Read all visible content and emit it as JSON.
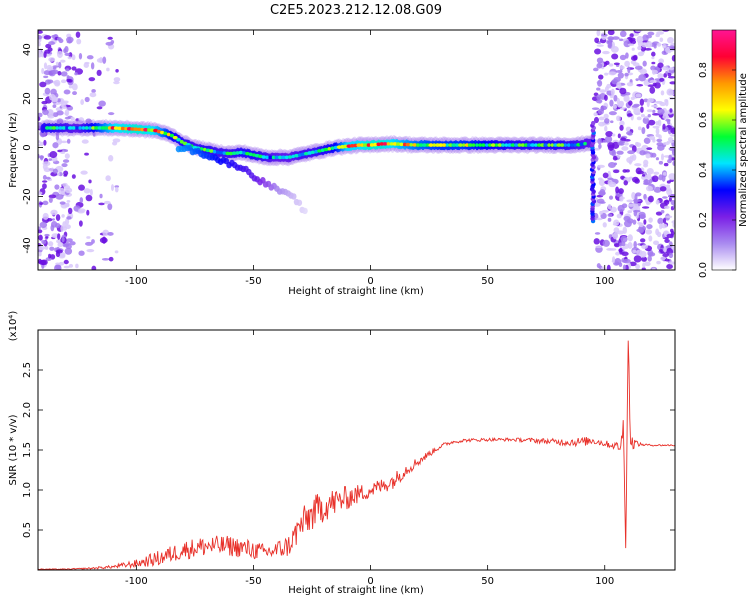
{
  "title": "C2E5.2023.212.12.08.G09",
  "chart_data": [
    {
      "type": "heatmap",
      "xlabel": "Height of straight line (km)",
      "ylabel": "Frequency (Hz)",
      "xlim": [
        -142,
        130
      ],
      "ylim": [
        -50,
        48
      ],
      "xticks": [
        -100,
        -50,
        0,
        50,
        100
      ],
      "yticks": [
        -40,
        -20,
        0,
        20,
        40
      ],
      "colorbar": {
        "label": "Normalized spectral amplitude",
        "range": [
          0,
          0.96
        ],
        "ticks": [
          0.0,
          0.2,
          0.4,
          0.6,
          0.8
        ],
        "colormap": [
          "#ffffff",
          "#a98af0",
          "#7a1fe6",
          "#0000ff",
          "#00e5ff",
          "#00ff33",
          "#ffff00",
          "#ff9900",
          "#ff0033",
          "#ff1493"
        ]
      },
      "ridge": [
        {
          "x": -137,
          "y": 8,
          "a": 0.55
        },
        {
          "x": -125,
          "y": 8,
          "a": 0.45
        },
        {
          "x": -110,
          "y": 8,
          "a": 0.8
        },
        {
          "x": -100,
          "y": 7.5,
          "a": 0.85
        },
        {
          "x": -92,
          "y": 7,
          "a": 0.8
        },
        {
          "x": -85,
          "y": 5,
          "a": 0.6
        },
        {
          "x": -80,
          "y": 2,
          "a": 0.55
        },
        {
          "x": -75,
          "y": 0,
          "a": 0.5
        },
        {
          "x": -70,
          "y": -1,
          "a": 0.55
        },
        {
          "x": -65,
          "y": -2,
          "a": 0.5
        },
        {
          "x": -60,
          "y": -2.5,
          "a": 0.5
        },
        {
          "x": -55,
          "y": -2,
          "a": 0.55
        },
        {
          "x": -50,
          "y": -3,
          "a": 0.55
        },
        {
          "x": -45,
          "y": -4,
          "a": 0.5
        },
        {
          "x": -40,
          "y": -4,
          "a": 0.45
        },
        {
          "x": -35,
          "y": -4,
          "a": 0.45
        },
        {
          "x": -30,
          "y": -3,
          "a": 0.5
        },
        {
          "x": -25,
          "y": -2,
          "a": 0.5
        },
        {
          "x": -20,
          "y": -1,
          "a": 0.55
        },
        {
          "x": -15,
          "y": 0,
          "a": 0.6
        },
        {
          "x": -10,
          "y": 0.5,
          "a": 0.8
        },
        {
          "x": -5,
          "y": 1,
          "a": 0.8
        },
        {
          "x": 0,
          "y": 1,
          "a": 0.85
        },
        {
          "x": 5,
          "y": 1.5,
          "a": 0.85
        },
        {
          "x": 10,
          "y": 1.5,
          "a": 0.8
        },
        {
          "x": 20,
          "y": 1,
          "a": 0.7
        },
        {
          "x": 30,
          "y": 1,
          "a": 0.65
        },
        {
          "x": 40,
          "y": 1,
          "a": 0.65
        },
        {
          "x": 50,
          "y": 1,
          "a": 0.6
        },
        {
          "x": 60,
          "y": 1,
          "a": 0.55
        },
        {
          "x": 70,
          "y": 1,
          "a": 0.55
        },
        {
          "x": 80,
          "y": 1,
          "a": 0.55
        },
        {
          "x": 88,
          "y": 1,
          "a": 0.5
        },
        {
          "x": 94,
          "y": 2,
          "a": 0.45
        }
      ],
      "branch": [
        {
          "x": -80,
          "y": 0,
          "a": 0.5
        },
        {
          "x": -70,
          "y": -3,
          "a": 0.45
        },
        {
          "x": -62,
          "y": -6,
          "a": 0.4
        },
        {
          "x": -55,
          "y": -8,
          "a": 0.35
        },
        {
          "x": -48,
          "y": -13,
          "a": 0.3
        },
        {
          "x": -40,
          "y": -17,
          "a": 0.15
        },
        {
          "x": -32,
          "y": -21,
          "a": 0.08
        },
        {
          "x": -27,
          "y": -28,
          "a": 0.04
        }
      ]
    },
    {
      "type": "line",
      "xlabel": "Height of straight line (km)",
      "ylabel": "SNR (10 * v/v)",
      "yscale_label": "(x10⁴)",
      "xlim": [
        -142,
        130
      ],
      "ylim": [
        0,
        3.0
      ],
      "xticks": [
        -100,
        -50,
        0,
        50,
        100
      ],
      "yticks": [
        0.5,
        1.0,
        1.5,
        2.0,
        2.5
      ],
      "series": [
        {
          "color": "#e8312a",
          "x": [
            -142,
            -130,
            -120,
            -110,
            -100,
            -90,
            -80,
            -70,
            -60,
            -50,
            -45,
            -40,
            -35,
            -30,
            -25,
            -20,
            -15,
            -10,
            -5,
            0,
            5,
            10,
            15,
            20,
            25,
            30,
            35,
            40,
            50,
            60,
            70,
            80,
            90,
            95,
            100,
            105,
            107,
            108,
            109,
            110,
            111,
            115,
            120,
            130
          ],
          "y": [
            0.01,
            0.01,
            0.02,
            0.04,
            0.08,
            0.15,
            0.25,
            0.3,
            0.3,
            0.25,
            0.22,
            0.25,
            0.3,
            0.55,
            0.7,
            0.8,
            0.85,
            0.9,
            0.95,
            1.0,
            1.05,
            1.12,
            1.25,
            1.35,
            1.45,
            1.55,
            1.6,
            1.62,
            1.63,
            1.63,
            1.62,
            1.6,
            1.6,
            1.62,
            1.58,
            1.55,
            1.55,
            1.8,
            0.3,
            2.9,
            1.6,
            1.57,
            1.56,
            1.56
          ],
          "noise": [
            0.005,
            0.005,
            0.01,
            0.02,
            0.05,
            0.1,
            0.12,
            0.13,
            0.13,
            0.12,
            0.1,
            0.12,
            0.14,
            0.2,
            0.22,
            0.2,
            0.18,
            0.15,
            0.12,
            0.1,
            0.1,
            0.1,
            0.08,
            0.06,
            0.04,
            0.03,
            0.02,
            0.02,
            0.02,
            0.02,
            0.03,
            0.04,
            0.06,
            0.05,
            0.04,
            0.05,
            0.1,
            0.2,
            0.1,
            0.2,
            0.1,
            0.02,
            0.01,
            0.01
          ]
        }
      ]
    }
  ]
}
